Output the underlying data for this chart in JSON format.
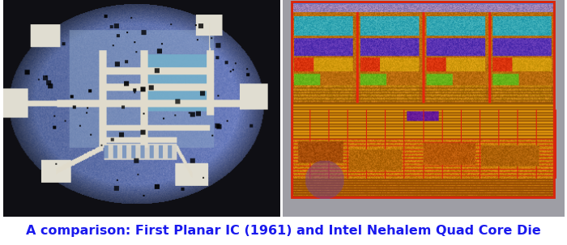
{
  "caption": "A comparison: First Planar IC (1961) and Intel Nehalem Quad Core Die",
  "caption_color": "#1a1aee",
  "caption_fontsize": 11.5,
  "caption_fontweight": "bold",
  "background_color": "#ffffff",
  "fig_width": 7.0,
  "fig_height": 3.03
}
